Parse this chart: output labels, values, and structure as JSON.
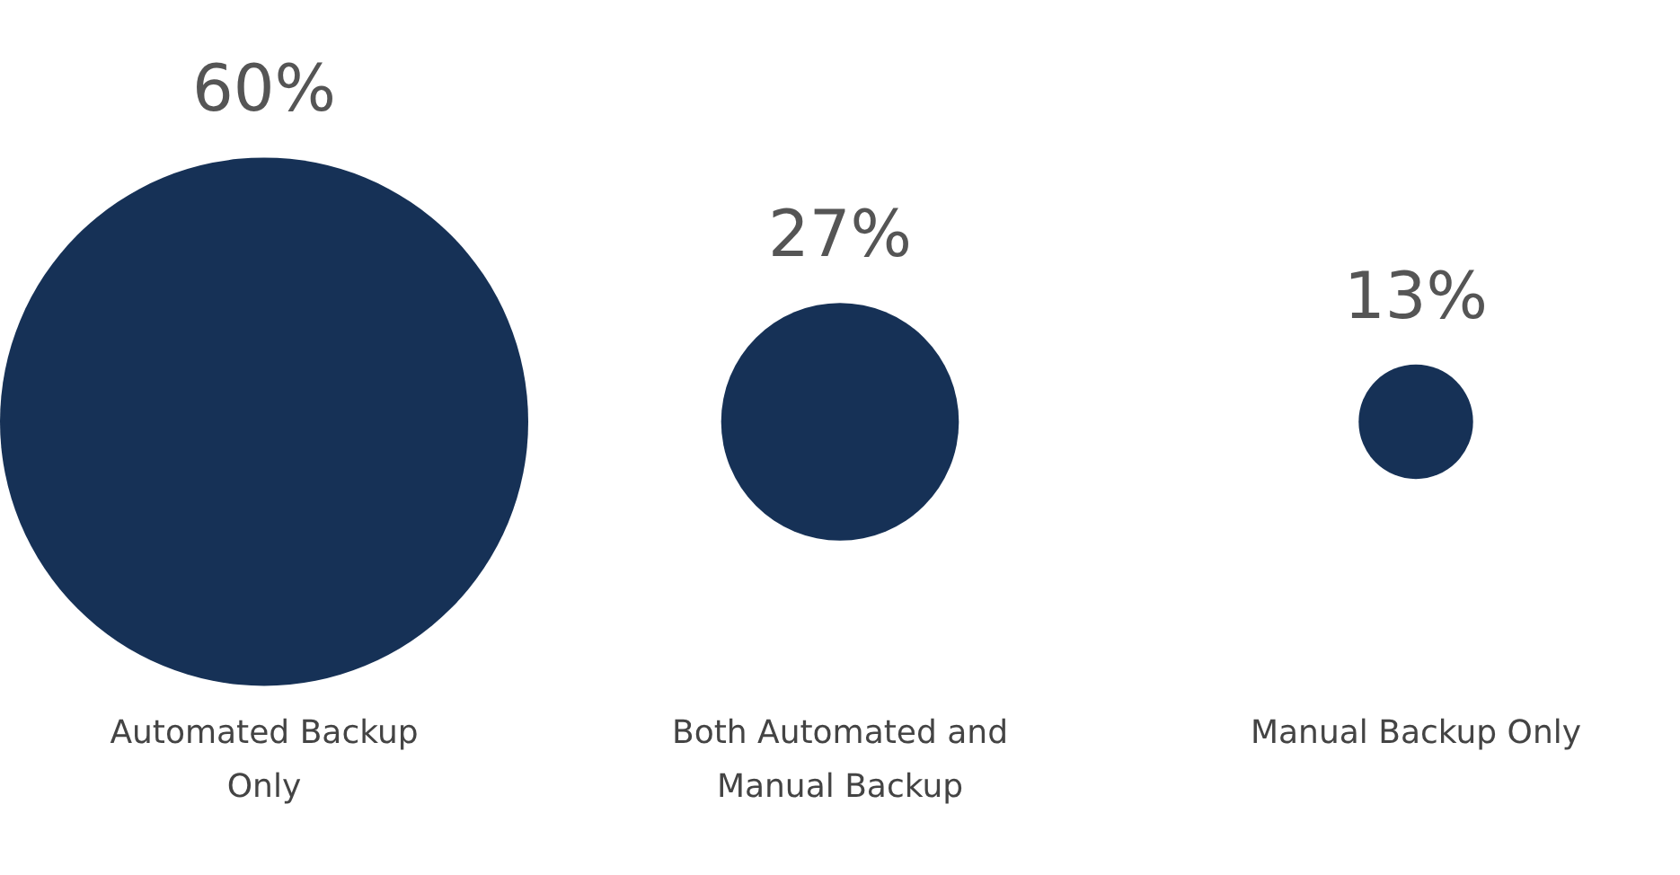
{
  "chart_data": {
    "type": "other",
    "categories": [
      "Automated Backup Only",
      "Both Automated and Manual Backup",
      "Manual Backup Only"
    ],
    "values": [
      60,
      27,
      13
    ],
    "value_labels": [
      "60%",
      "27%",
      "13%"
    ],
    "color": "#163156"
  }
}
